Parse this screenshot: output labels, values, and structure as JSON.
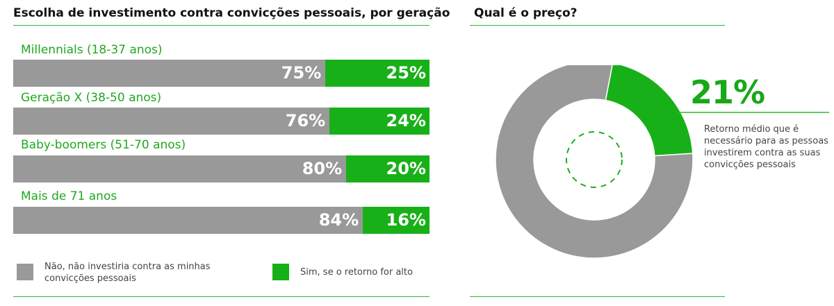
{
  "left_title": "Escolha de investimento contra convicções pessoais, por geração",
  "right_title": "Qual é o preço?",
  "colors": {
    "no": "#999999",
    "yes": "#18b018",
    "accent": "#2db82d",
    "label": "#1fa81f"
  },
  "chart_data": [
    {
      "type": "bar",
      "orientation": "horizontal",
      "stacked": true,
      "title": "Escolha de investimento contra convicções pessoais, por geração",
      "categories": [
        "Millennials (18-37 anos)",
        "Geração X (38-50 anos)",
        "Baby-boomers (51-70 anos)",
        "Mais de 71 anos"
      ],
      "series": [
        {
          "name": "Não, não investiria contra as minhas convicções pessoais",
          "values": [
            75,
            76,
            80,
            84
          ],
          "labels": [
            "75%",
            "76%",
            "80%",
            "84%"
          ]
        },
        {
          "name": "Sim, se o retorno for alto",
          "values": [
            25,
            24,
            20,
            16
          ],
          "labels": [
            "25%",
            "24%",
            "20%",
            "16%"
          ]
        }
      ],
      "xlim": [
        0,
        100
      ],
      "grid": false,
      "legend_position": "bottom"
    },
    {
      "type": "pie",
      "donut": true,
      "title": "Qual é o preço?",
      "slices": [
        {
          "label": "21%",
          "value": 21
        },
        {
          "label": "",
          "value": 79
        }
      ],
      "annotation": "Retorno médio que é necessário para as pessoas investirem contra as suas convicções pessoais"
    }
  ],
  "legend": {
    "no_text_line1": "Não, não investiria contra as minhas",
    "no_text_line2": "convicções pessoais",
    "yes_text": "Sim, se o retorno for alto"
  },
  "callout": {
    "value": "21%",
    "text": "Retorno médio que é necessário para as pessoas investirem contra as suas convicções pessoais"
  }
}
